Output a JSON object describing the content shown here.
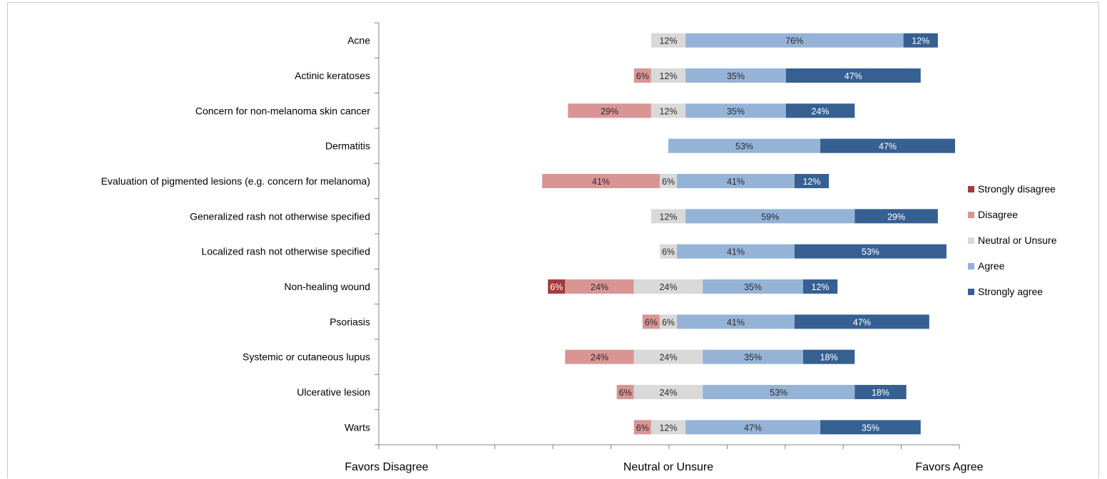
{
  "chart_data": {
    "type": "bar",
    "orientation": "horizontal",
    "stacked": "diverging",
    "categories": [
      "Acne",
      "Actinic keratoses",
      "Concern for non-melanoma skin cancer",
      "Dermatitis",
      "Evaluation of pigmented lesions (e.g. concern for melanoma)",
      "Generalized rash not otherwise specified",
      "Localized rash not otherwise specified",
      "Non-healing wound",
      "Psoriasis",
      "Systemic or cutaneous lupus",
      "Ulcerative lesion",
      "Warts"
    ],
    "series": [
      {
        "name": "Strongly disagree",
        "color": "#a33b3b",
        "values": [
          0,
          0,
          0,
          0,
          0,
          0,
          0,
          6,
          0,
          0,
          0,
          0
        ]
      },
      {
        "name": "Disagree",
        "color": "#d99594",
        "values": [
          0,
          6,
          29,
          0,
          41,
          0,
          0,
          24,
          6,
          24,
          6,
          6
        ]
      },
      {
        "name": "Neutral or Unsure",
        "color": "#d9d9d9",
        "values": [
          12,
          12,
          12,
          0,
          6,
          12,
          6,
          24,
          6,
          24,
          24,
          12
        ]
      },
      {
        "name": "Agree",
        "color": "#95b3d7",
        "values": [
          76,
          35,
          35,
          53,
          41,
          59,
          41,
          35,
          41,
          35,
          53,
          47
        ]
      },
      {
        "name": "Strongly agree",
        "color": "#366092",
        "values": [
          12,
          47,
          24,
          47,
          12,
          29,
          53,
          12,
          47,
          18,
          18,
          35
        ]
      }
    ],
    "xaxis_labels": {
      "left": "Favors Disagree",
      "center": "Neutral or Unsure",
      "right": "Favors Agree"
    },
    "xlim": [
      -100,
      100
    ],
    "legend_position": "right"
  }
}
